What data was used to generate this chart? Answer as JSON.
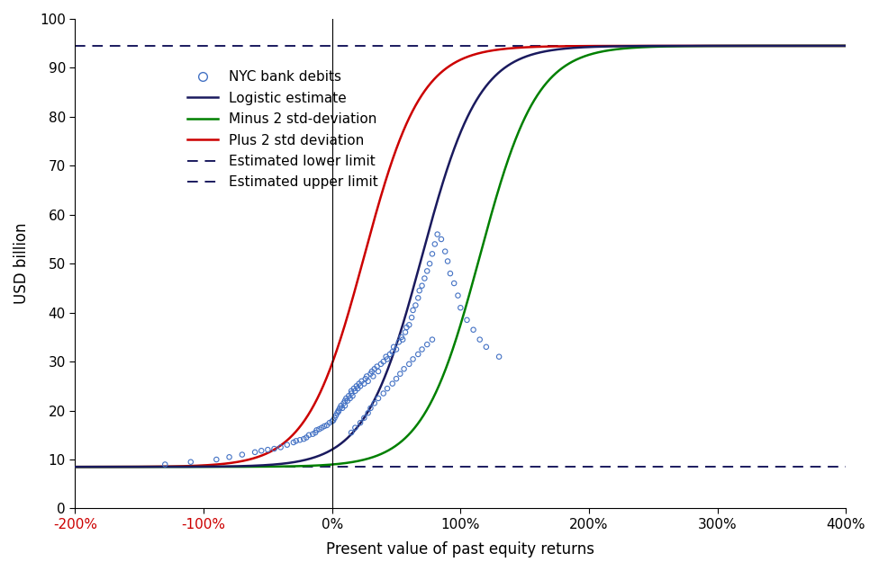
{
  "xlabel": "Present value of past equity returns",
  "ylabel": "USD billion",
  "xlim": [
    -2.0,
    4.0
  ],
  "ylim": [
    0,
    100
  ],
  "xticks": [
    -2.0,
    -1.0,
    0.0,
    1.0,
    2.0,
    3.0,
    4.0
  ],
  "xtick_labels": [
    "-200%",
    "-100%",
    "0%",
    "100%",
    "200%",
    "300%",
    "400%"
  ],
  "yticks": [
    0,
    10,
    20,
    30,
    40,
    50,
    60,
    70,
    80,
    90,
    100
  ],
  "lower_limit": 8.5,
  "upper_limit": 94.5,
  "logistic_L": 94.5,
  "logistic_floor": 8.5,
  "logistic_x0_main": 0.7,
  "logistic_k_main": 4.5,
  "logistic_x0_minus": 1.15,
  "logistic_k_minus": 4.5,
  "logistic_x0_plus": 0.25,
  "logistic_k_plus": 4.5,
  "color_main": "#1a1a5e",
  "color_minus": "#008000",
  "color_plus": "#cc0000",
  "color_limits": "#1a1a5e",
  "color_scatter": "#4472c4",
  "scatter_data_x": [
    -1.3,
    -1.1,
    -0.9,
    -0.8,
    -0.7,
    -0.6,
    -0.55,
    -0.5,
    -0.45,
    -0.4,
    -0.35,
    -0.3,
    -0.28,
    -0.25,
    -0.22,
    -0.2,
    -0.18,
    -0.15,
    -0.13,
    -0.12,
    -0.1,
    -0.08,
    -0.06,
    -0.04,
    -0.02,
    0.0,
    0.01,
    0.02,
    0.03,
    0.04,
    0.05,
    0.05,
    0.06,
    0.07,
    0.08,
    0.09,
    0.1,
    0.1,
    0.11,
    0.12,
    0.13,
    0.14,
    0.15,
    0.15,
    0.16,
    0.17,
    0.18,
    0.19,
    0.2,
    0.21,
    0.22,
    0.23,
    0.25,
    0.26,
    0.27,
    0.28,
    0.3,
    0.31,
    0.32,
    0.33,
    0.35,
    0.36,
    0.38,
    0.4,
    0.42,
    0.43,
    0.45,
    0.47,
    0.48,
    0.5,
    0.52,
    0.54,
    0.55,
    0.57,
    0.58,
    0.6,
    0.62,
    0.63,
    0.65,
    0.67,
    0.68,
    0.7,
    0.72,
    0.74,
    0.76,
    0.78,
    0.8,
    0.82,
    0.85,
    0.88,
    0.9,
    0.92,
    0.95,
    0.98,
    1.0,
    1.05,
    1.1,
    1.15,
    1.2,
    1.3,
    0.15,
    0.18,
    0.22,
    0.25,
    0.28,
    0.3,
    0.33,
    0.36,
    0.4,
    0.43,
    0.47,
    0.5,
    0.53,
    0.56,
    0.6,
    0.63,
    0.67,
    0.7,
    0.74,
    0.78
  ],
  "scatter_data_y": [
    9.0,
    9.5,
    10.0,
    10.5,
    11.0,
    11.5,
    11.8,
    12.0,
    12.2,
    12.5,
    13.0,
    13.5,
    13.8,
    14.0,
    14.2,
    14.5,
    15.0,
    15.2,
    15.5,
    16.0,
    16.2,
    16.5,
    16.8,
    17.0,
    17.5,
    17.8,
    18.0,
    18.5,
    19.0,
    19.5,
    19.8,
    20.0,
    20.5,
    21.0,
    20.5,
    21.5,
    22.0,
    21.0,
    22.5,
    22.0,
    23.0,
    22.5,
    23.5,
    24.0,
    23.0,
    24.5,
    24.0,
    25.0,
    24.5,
    25.5,
    25.0,
    26.0,
    25.5,
    26.5,
    27.0,
    26.0,
    27.5,
    28.0,
    27.0,
    28.5,
    29.0,
    28.0,
    29.5,
    30.0,
    31.0,
    30.5,
    31.5,
    32.0,
    33.0,
    32.5,
    34.0,
    35.0,
    34.5,
    36.0,
    37.0,
    37.5,
    39.0,
    40.5,
    41.5,
    43.0,
    44.5,
    45.5,
    47.0,
    48.5,
    50.0,
    52.0,
    54.0,
    56.0,
    55.0,
    52.5,
    50.5,
    48.0,
    46.0,
    43.5,
    41.0,
    38.5,
    36.5,
    34.5,
    33.0,
    31.0,
    15.5,
    16.5,
    17.5,
    18.5,
    19.5,
    20.5,
    21.5,
    22.5,
    23.5,
    24.5,
    25.5,
    26.5,
    27.5,
    28.5,
    29.5,
    30.5,
    31.5,
    32.5,
    33.5,
    34.5
  ],
  "legend_scatter_label": "NYC bank debits",
  "legend_main_label": "Logistic estimate",
  "legend_minus_label": "Minus 2 std-deviation",
  "legend_plus_label": "Plus 2 std deviation",
  "legend_lower_label": "Estimated lower limit",
  "legend_upper_label": "Estimated upper limit"
}
